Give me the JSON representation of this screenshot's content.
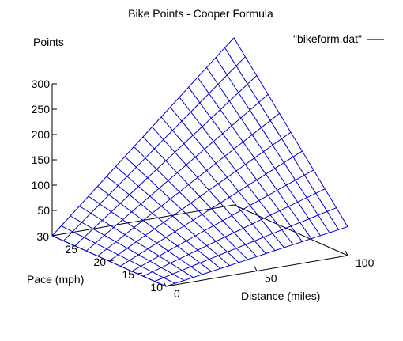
{
  "chart_data": {
    "type": "surface",
    "title": "Bike Points - Cooper Formula",
    "zlabel": "Points",
    "xlabel": "Distance (miles)",
    "ylabel": "Pace (mph)",
    "legend": {
      "label": "\"bikeform.dat\"",
      "position": "top-right"
    },
    "x_ticks": [
      "0",
      "50",
      "100"
    ],
    "y_ticks": [
      "10",
      "15",
      "20",
      "25",
      "30"
    ],
    "z_ticks": [
      "50",
      "100",
      "150",
      "200",
      "250",
      "300"
    ],
    "xlim": [
      0,
      100
    ],
    "ylim": [
      10,
      30
    ],
    "zlim": [
      0,
      300
    ],
    "x_steps": 20,
    "y_steps": 10,
    "corner_values": [
      {
        "distance": 0,
        "pace": 10,
        "points": 0
      },
      {
        "distance": 100,
        "pace": 10,
        "points": 57
      },
      {
        "distance": 0,
        "pace": 30,
        "points": 0
      },
      {
        "distance": 100,
        "pace": 30,
        "points": 330
      }
    ],
    "colors": {
      "surface": "#0000cc",
      "axes": "#000000"
    }
  }
}
